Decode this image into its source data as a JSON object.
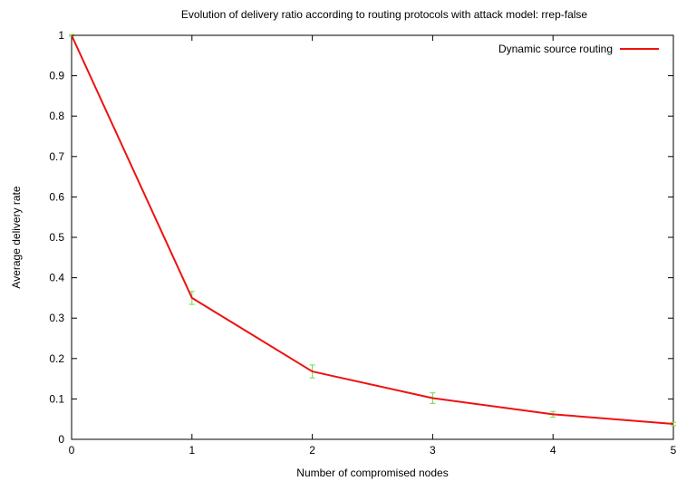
{
  "chart_data": {
    "type": "line",
    "title": "Evolution of delivery ratio according to routing protocols with attack model: rrep-false",
    "xlabel": "Number of compromised nodes",
    "ylabel": "Average delivery rate",
    "xlim": [
      0,
      5
    ],
    "ylim": [
      0,
      1
    ],
    "xticks": [
      "0",
      "1",
      "2",
      "3",
      "4",
      "5"
    ],
    "yticks": [
      "0",
      "0.1",
      "0.2",
      "0.3",
      "0.4",
      "0.5",
      "0.6",
      "0.7",
      "0.8",
      "0.9",
      "1"
    ],
    "grid": false,
    "legend_position": "top-right",
    "series": [
      {
        "name": "Dynamic source routing",
        "color": "#ee1111",
        "errorbar_color": "#66dd44",
        "x": [
          0,
          1,
          2,
          3,
          4,
          5
        ],
        "y": [
          1.0,
          0.35,
          0.168,
          0.102,
          0.062,
          0.038
        ],
        "err": [
          0.002,
          0.016,
          0.016,
          0.013,
          0.007,
          0.004
        ]
      }
    ]
  }
}
